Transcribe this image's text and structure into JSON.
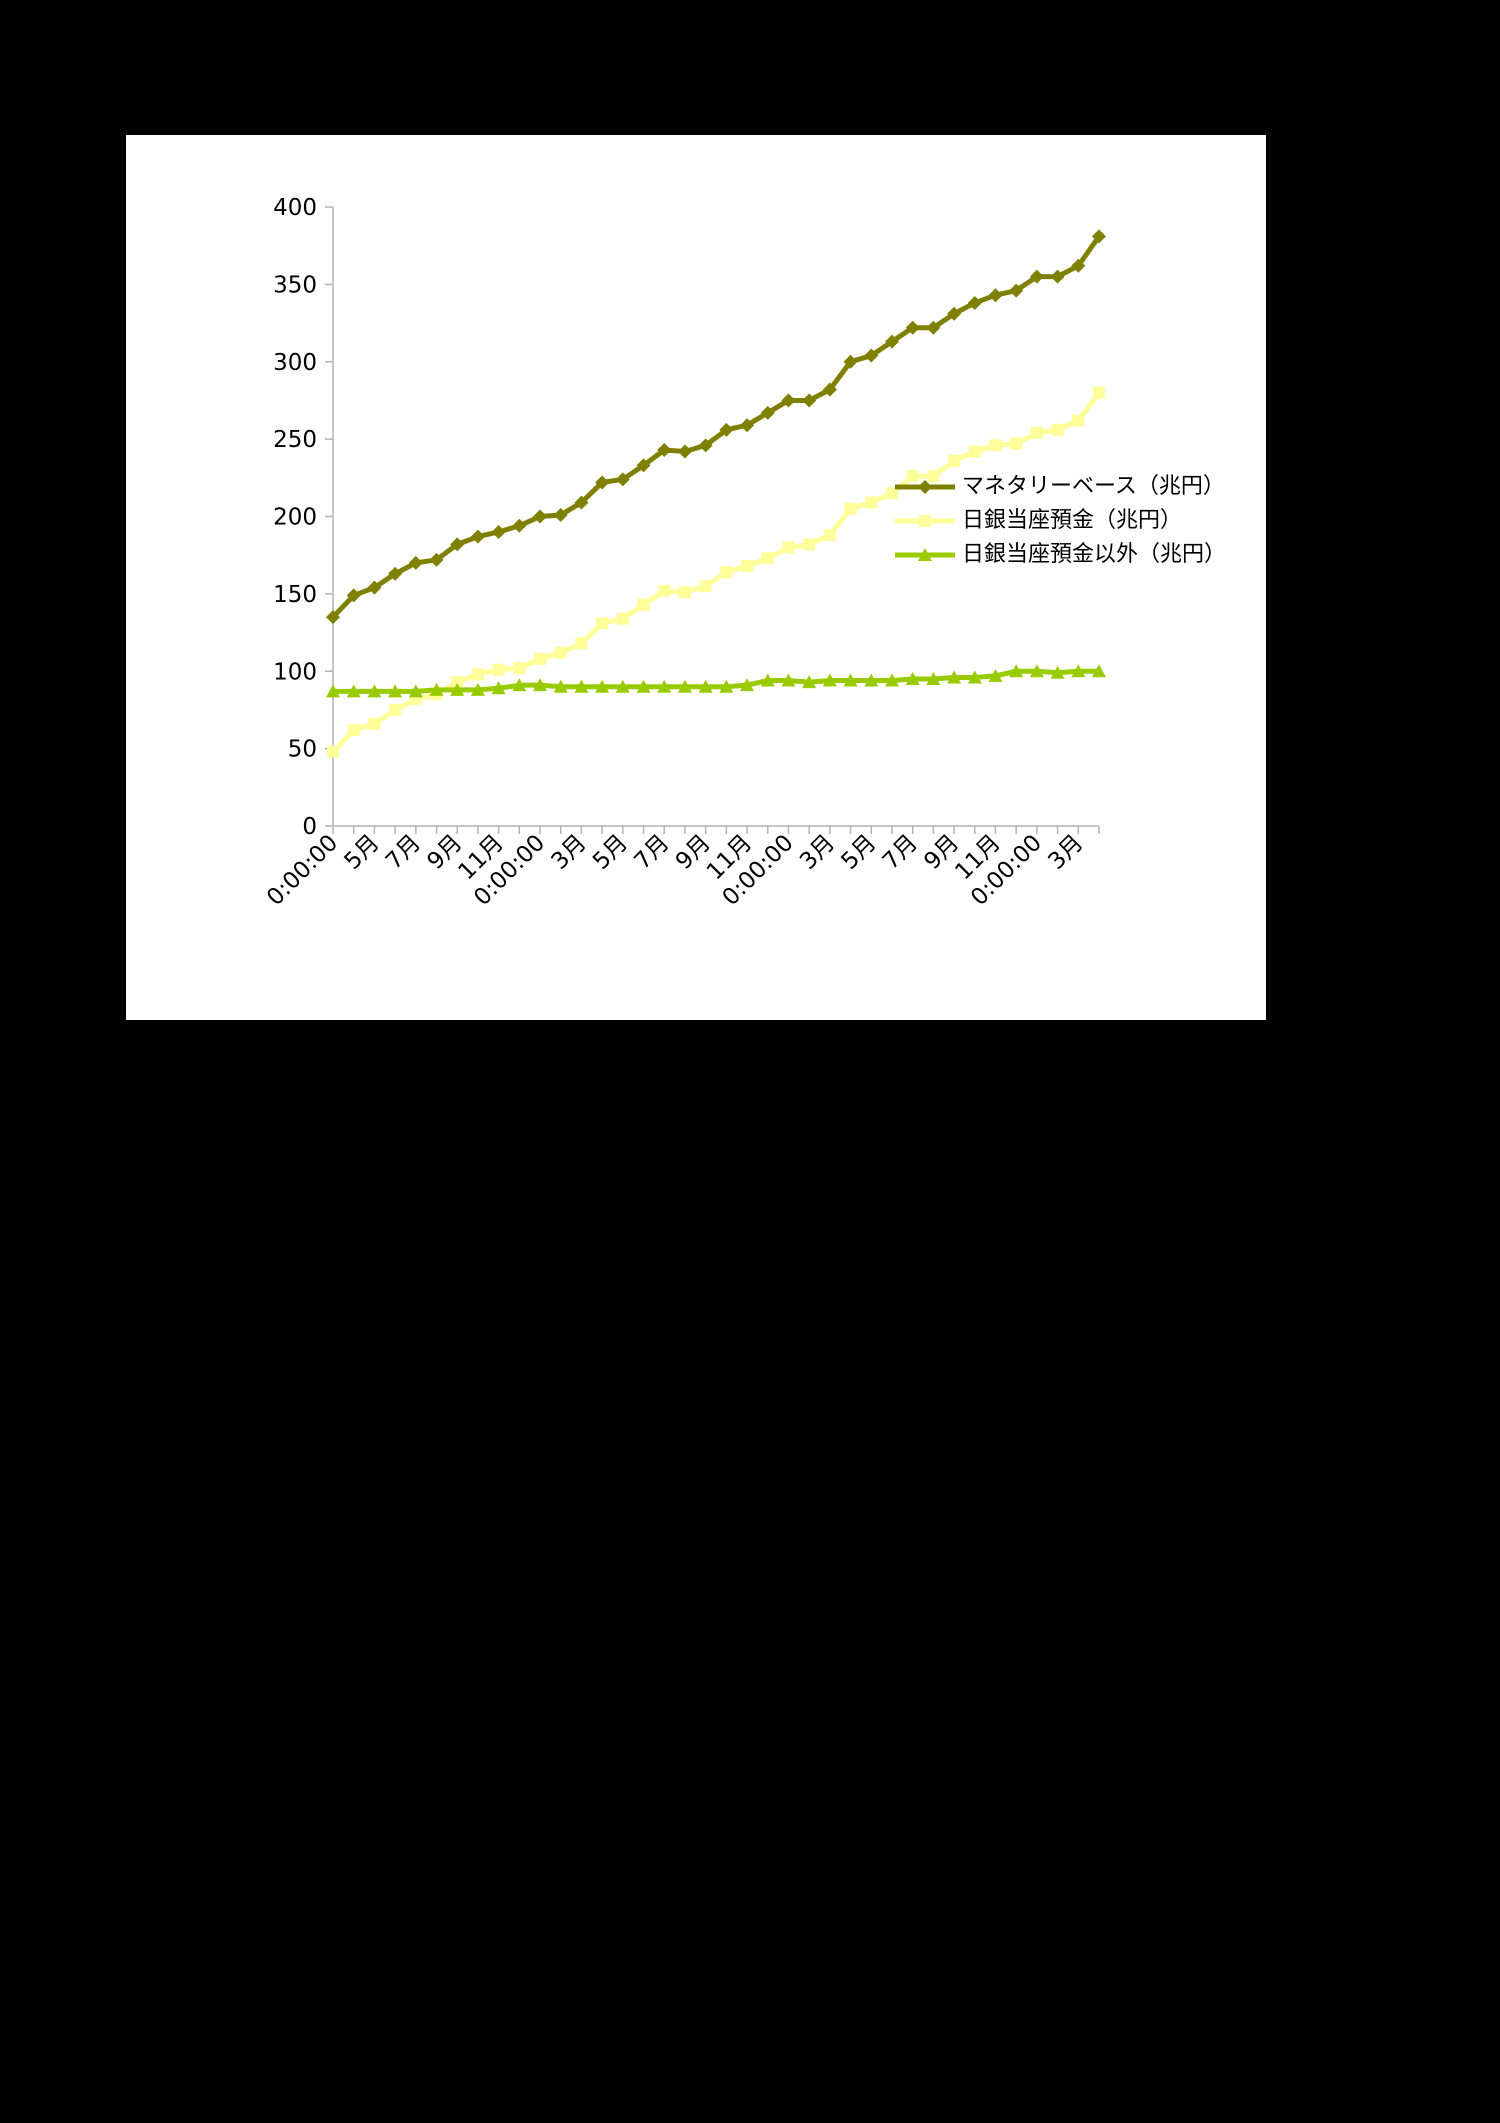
{
  "chart_data": {
    "type": "line",
    "categories": [
      "0:00:00",
      null,
      "5月",
      null,
      "7月",
      null,
      "9月",
      null,
      "11月",
      null,
      "0:00:00",
      null,
      "3月",
      null,
      "5月",
      null,
      "7月",
      null,
      "9月",
      null,
      "11月",
      null,
      "0:00:00",
      null,
      "3月",
      null,
      "5月",
      null,
      "7月",
      null,
      "9月",
      null,
      "11月",
      null,
      "0:00:00",
      null,
      "3月",
      null
    ],
    "series": [
      {
        "name": "マネタリーベース（兆円）",
        "color": "#808000",
        "marker": "diamond",
        "values": [
          135,
          149,
          154,
          163,
          170,
          172,
          182,
          187,
          190,
          194,
          200,
          201,
          209,
          222,
          224,
          233,
          243,
          242,
          246,
          256,
          259,
          267,
          275,
          275,
          282,
          300,
          304,
          313,
          322,
          322,
          331,
          338,
          343,
          346,
          355,
          355,
          362,
          381
        ]
      },
      {
        "name": "日銀当座預金（兆円）",
        "color": "#ffff99",
        "marker": "square",
        "values": [
          48,
          62,
          66,
          75,
          82,
          85,
          93,
          98,
          101,
          102,
          108,
          112,
          118,
          131,
          134,
          143,
          152,
          151,
          155,
          164,
          168,
          173,
          180,
          182,
          188,
          205,
          209,
          215,
          226,
          226,
          236,
          242,
          246,
          247,
          254,
          256,
          262,
          280
        ]
      },
      {
        "name": "日銀当座預金以外（兆円）",
        "color": "#99cc00",
        "marker": "triangle",
        "values": [
          87,
          87,
          87,
          87,
          87,
          88,
          88,
          88,
          89,
          91,
          91,
          90,
          90,
          90,
          90,
          90,
          90,
          90,
          90,
          90,
          91,
          94,
          94,
          93,
          94,
          94,
          94,
          94,
          95,
          95,
          96,
          96,
          97,
          100,
          100,
          99,
          100,
          100
        ]
      }
    ],
    "ylim": [
      0,
      400
    ],
    "yticks": [
      0,
      50,
      100,
      150,
      200,
      250,
      300,
      350,
      400
    ],
    "legend": "right"
  }
}
